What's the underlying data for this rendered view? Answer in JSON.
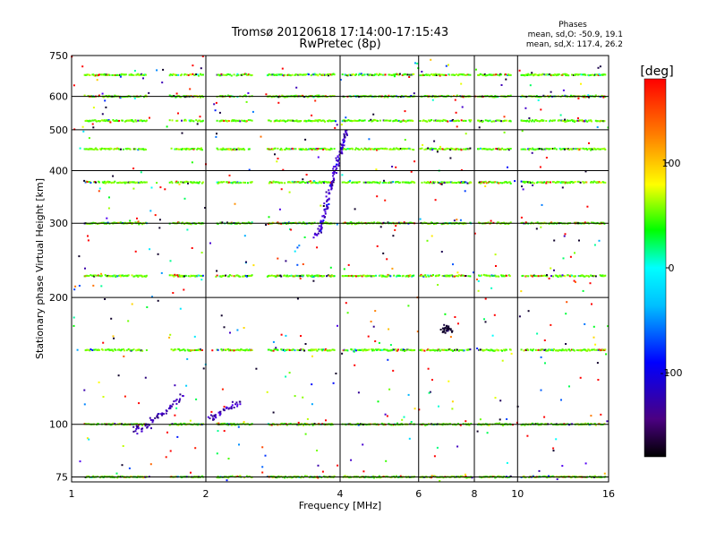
{
  "chart_data": {
    "type": "scatter",
    "title": "Tromsø 20120618 17:14:00-17:15:43",
    "subtitle": "RwPretec (8p)",
    "xlabel": "Frequency [MHz]",
    "ylabel": "Stationary phase Virtual Height [km]",
    "x_scale": "log",
    "y_scale": "log",
    "xlim": [
      1,
      16
    ],
    "ylim": [
      73,
      750
    ],
    "x_ticks": [
      "1",
      "2",
      "4",
      "6",
      "8",
      "10",
      "16"
    ],
    "y_ticks": [
      "75",
      "100",
      "200",
      "300",
      "400",
      "500",
      "600",
      "750"
    ],
    "grid": true,
    "stats": {
      "heading": "Phases",
      "line_o": "mean, sd,O: -50.9, 19.1",
      "line_x": "mean, sd,X: 117.4, 26.2"
    },
    "colorbar": {
      "label": "[deg]",
      "ticks": [
        "100",
        "0",
        "-100"
      ],
      "range": [
        -180,
        180
      ]
    },
    "traces": [
      {
        "name": "",
        "phase_deg": -110,
        "points": [
          [
            3.5,
            275
          ],
          [
            3.6,
            290
          ],
          [
            3.65,
            305
          ],
          [
            3.7,
            320
          ],
          [
            3.75,
            340
          ],
          [
            3.8,
            360
          ],
          [
            3.85,
            380
          ],
          [
            3.9,
            400
          ],
          [
            3.95,
            420
          ],
          [
            4.0,
            440
          ],
          [
            4.05,
            460
          ],
          [
            4.1,
            480
          ],
          [
            4.15,
            500
          ]
        ]
      },
      {
        "name": "",
        "phase_deg": -115,
        "points": [
          [
            1.38,
            97
          ],
          [
            1.42,
            98
          ],
          [
            1.5,
            101
          ],
          [
            1.55,
            104
          ],
          [
            1.62,
            107
          ],
          [
            1.7,
            112
          ],
          [
            1.78,
            118
          ]
        ]
      },
      {
        "name": "",
        "phase_deg": -115,
        "points": [
          [
            2.05,
            103
          ],
          [
            2.1,
            105
          ],
          [
            2.2,
            107
          ],
          [
            2.3,
            110
          ],
          [
            2.4,
            112
          ]
        ]
      },
      {
        "name": "",
        "phase_deg": -150,
        "points": [
          [
            6.8,
            165
          ],
          [
            6.9,
            168
          ],
          [
            7.0,
            170
          ],
          [
            7.1,
            166
          ]
        ]
      }
    ],
    "bands_km": [
      75,
      100,
      150,
      225,
      300,
      375,
      450,
      525,
      600,
      675
    ]
  }
}
